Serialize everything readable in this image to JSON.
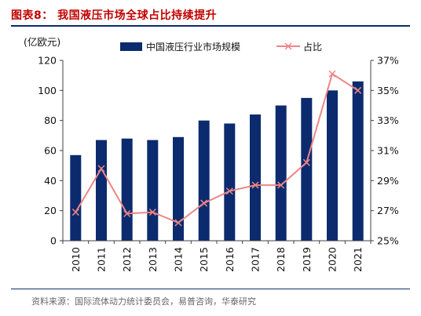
{
  "title": "图表8： 我国液压市场全球占比持续提升",
  "source": "资料来源：国际流体动力统计委员会，易普咨询，华泰研究",
  "colors": {
    "bar": "#0b2b6e",
    "line": "#ef8585",
    "title": "#c00000",
    "axis": "#404040"
  },
  "chart_data": {
    "type": "bar",
    "categories": [
      "2010",
      "2011",
      "2012",
      "2013",
      "2014",
      "2015",
      "2016",
      "2017",
      "2018",
      "2019",
      "2020",
      "2021"
    ],
    "y_unit_label": "(亿欧元)",
    "ylim": [
      0,
      120
    ],
    "yticks": [
      0,
      20,
      40,
      60,
      80,
      100,
      120
    ],
    "y2lim": [
      25,
      37
    ],
    "y2ticks": [
      "25%",
      "27%",
      "29%",
      "31%",
      "33%",
      "35%",
      "37%"
    ],
    "y2tick_values": [
      25,
      27,
      29,
      31,
      33,
      35,
      37
    ],
    "series": [
      {
        "name": "中国液压行业市场规模",
        "type": "bar",
        "axis": "left",
        "values": [
          57,
          67,
          68,
          67,
          69,
          80,
          78,
          84,
          90,
          95,
          100,
          106
        ]
      },
      {
        "name": "占比",
        "type": "line",
        "axis": "right",
        "marker": "x",
        "values": [
          26.9,
          29.8,
          26.8,
          26.9,
          26.2,
          27.5,
          28.3,
          28.7,
          28.7,
          30.2,
          36.1,
          35.0
        ]
      }
    ],
    "legend": "top-center",
    "grid": false
  }
}
